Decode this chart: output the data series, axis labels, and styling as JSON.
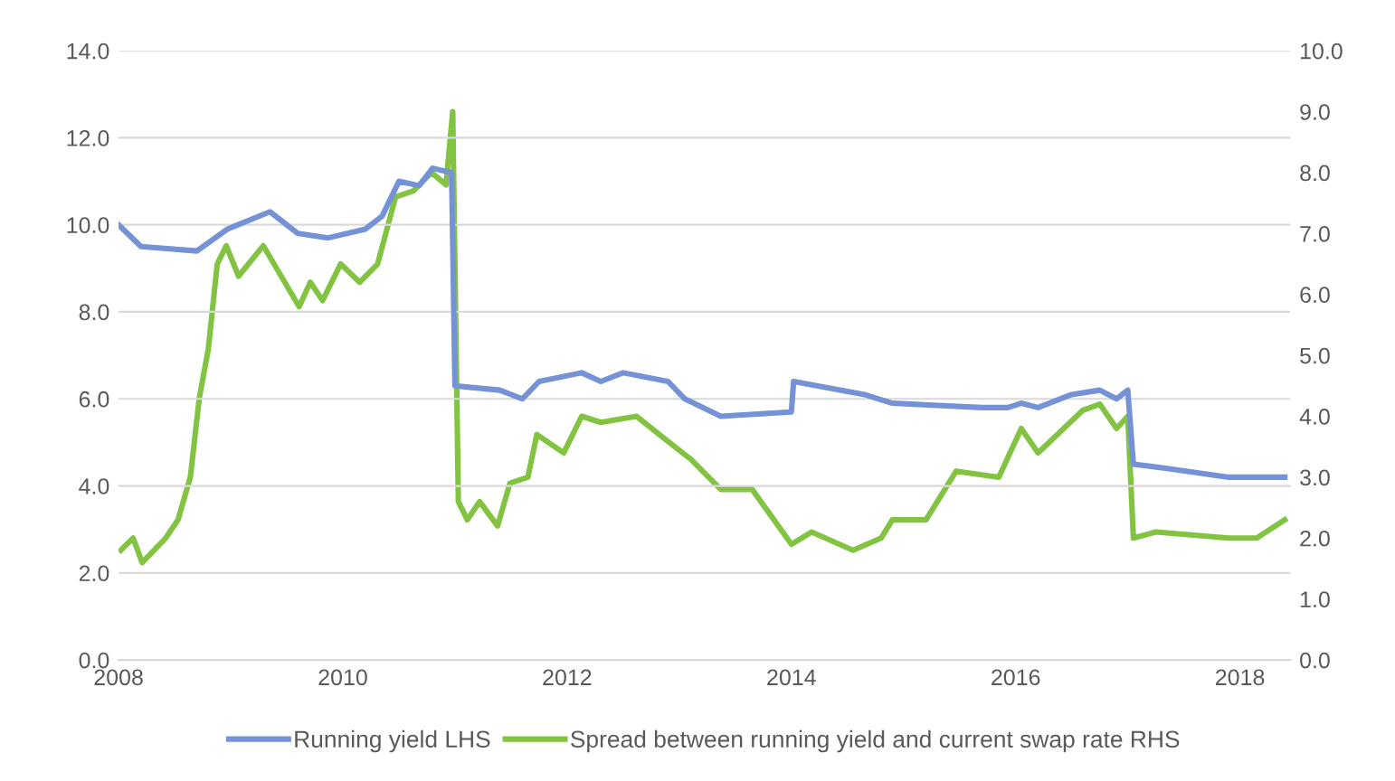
{
  "chart_data": {
    "type": "line",
    "grid": "y",
    "legend": "bottom",
    "marker": "none",
    "line_style": "solid",
    "xlim": [
      2008,
      2018.45
    ],
    "xticks": [
      2008,
      2010,
      2012,
      2014,
      2016,
      2018
    ],
    "ylim": [
      0,
      14
    ],
    "yticks": [
      {
        "value": 0,
        "label": "0.0"
      },
      {
        "value": 2,
        "label": "2.0"
      },
      {
        "value": 4,
        "label": "4.0"
      },
      {
        "value": 6,
        "label": "6.0"
      },
      {
        "value": 8,
        "label": "8.0"
      },
      {
        "value": 10,
        "label": "10.0"
      },
      {
        "value": 12,
        "label": "12.0"
      },
      {
        "value": 14,
        "label": "14.0"
      }
    ],
    "y2lim": [
      0,
      10
    ],
    "y2ticks": [
      {
        "value": 0,
        "label": "0.0"
      },
      {
        "value": 1,
        "label": "1.0"
      },
      {
        "value": 2,
        "label": "2.0"
      },
      {
        "value": 3,
        "label": "3.0"
      },
      {
        "value": 4,
        "label": "4.0"
      },
      {
        "value": 5,
        "label": "5.0"
      },
      {
        "value": 6,
        "label": "6.0"
      },
      {
        "value": 7,
        "label": "7.0"
      },
      {
        "value": 8,
        "label": "8.0"
      },
      {
        "value": 9,
        "label": "9.0"
      },
      {
        "value": 10,
        "label": "10.0"
      }
    ],
    "series": [
      {
        "name": "Running yield LHS",
        "color": "#7592d6",
        "x": [
          2008.0,
          2008.2,
          2008.7,
          2008.97,
          2009.35,
          2009.6,
          2009.87,
          2010.2,
          2010.35,
          2010.5,
          2010.68,
          2010.8,
          2010.97,
          2011.0,
          2011.4,
          2011.6,
          2011.75,
          2012.13,
          2012.3,
          2012.5,
          2012.9,
          2013.05,
          2013.37,
          2014.0,
          2014.02,
          2014.65,
          2014.9,
          2015.7,
          2015.93,
          2016.05,
          2016.2,
          2016.5,
          2016.75,
          2016.9,
          2017.0,
          2017.05,
          2017.35,
          2017.9,
          2018.4
        ],
        "values": [
          10.0,
          9.5,
          9.4,
          9.9,
          10.3,
          9.8,
          9.7,
          9.9,
          10.2,
          11.0,
          10.9,
          11.3,
          11.2,
          6.3,
          6.2,
          6.0,
          6.4,
          6.6,
          6.4,
          6.6,
          6.4,
          6.0,
          5.6,
          5.7,
          6.4,
          6.1,
          5.9,
          5.8,
          5.8,
          5.9,
          5.8,
          6.1,
          6.2,
          6.0,
          6.2,
          4.5,
          4.4,
          4.2,
          4.2
        ]
      },
      {
        "name": "Spread between running yield and current swap rate RHS",
        "color": "#82c341",
        "axis": "y2",
        "x": [
          2008.02,
          2008.13,
          2008.21,
          2008.42,
          2008.53,
          2008.64,
          2008.72,
          2008.8,
          2008.88,
          2008.96,
          2009.07,
          2009.29,
          2009.45,
          2009.61,
          2009.71,
          2009.82,
          2009.98,
          2010.15,
          2010.31,
          2010.47,
          2010.63,
          2010.79,
          2010.92,
          2010.98,
          2011.03,
          2011.11,
          2011.22,
          2011.38,
          2011.49,
          2011.65,
          2011.73,
          2011.97,
          2012.13,
          2012.3,
          2012.62,
          2012.89,
          2013.1,
          2013.37,
          2013.65,
          2014.0,
          2014.18,
          2014.55,
          2014.8,
          2014.9,
          2015.2,
          2015.47,
          2015.85,
          2016.05,
          2016.2,
          2016.6,
          2016.75,
          2016.9,
          2017.0,
          2017.05,
          2017.25,
          2017.9,
          2018.15,
          2018.4
        ],
        "values": [
          1.8,
          2.0,
          1.6,
          2.0,
          2.3,
          3.0,
          4.3,
          5.1,
          6.5,
          6.8,
          6.3,
          6.8,
          6.3,
          5.8,
          6.2,
          5.9,
          6.5,
          6.2,
          6.5,
          7.6,
          7.7,
          8.0,
          7.8,
          9.0,
          2.6,
          2.3,
          2.6,
          2.2,
          2.9,
          3.0,
          3.7,
          3.4,
          4.0,
          3.9,
          4.0,
          3.6,
          3.3,
          2.8,
          2.8,
          1.9,
          2.1,
          1.8,
          2.0,
          2.3,
          2.3,
          3.1,
          3.0,
          3.8,
          3.4,
          4.1,
          4.2,
          3.8,
          4.0,
          2.0,
          2.1,
          2.0,
          2.0,
          2.3
        ]
      }
    ]
  }
}
